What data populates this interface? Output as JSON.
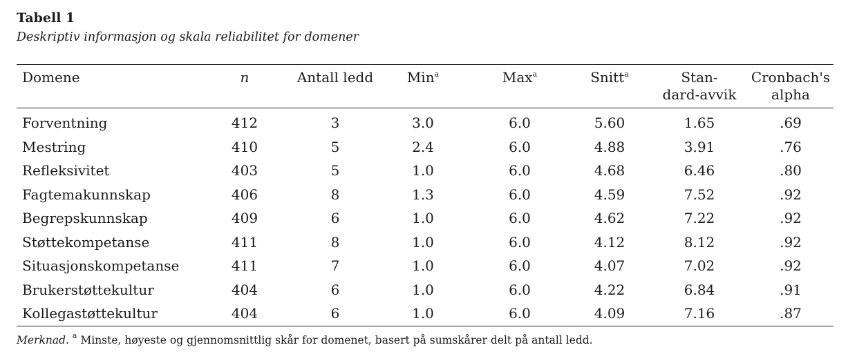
{
  "table": {
    "label": "Tabell 1",
    "caption": "Deskriptiv informasjon og skala reliabilitet for domener",
    "headers": [
      {
        "text": "Domene",
        "sup": ""
      },
      {
        "text": "n",
        "sup": ""
      },
      {
        "text": "Antall ledd",
        "sup": ""
      },
      {
        "text": "Min",
        "sup": "a"
      },
      {
        "text": "Max",
        "sup": "a"
      },
      {
        "text": "Snitt",
        "sup": "a"
      },
      {
        "text": "Stan-\ndard-avvik",
        "line1": "Stan-",
        "line2": "dard-avvik",
        "sup": ""
      },
      {
        "text": "Cronbach's\nalpha",
        "line1": "Cronbach's",
        "line2": "alpha",
        "sup": ""
      }
    ],
    "rows": [
      [
        "Forventning",
        "412",
        "3",
        "3.0",
        "6.0",
        "5.60",
        "1.65",
        ".69"
      ],
      [
        "Mestring",
        "410",
        "5",
        "2.4",
        "6.0",
        "4.88",
        "3.91",
        ".76"
      ],
      [
        "Refleksivitet",
        "403",
        "5",
        "1.0",
        "6.0",
        "4.68",
        "6.46",
        ".80"
      ],
      [
        "Fagtemakunnskap",
        "406",
        "8",
        "1.3",
        "6.0",
        "4.59",
        "7.52",
        ".92"
      ],
      [
        "Begrepskunnskap",
        "409",
        "6",
        "1.0",
        "6.0",
        "4.62",
        "7.22",
        ".92"
      ],
      [
        "Støttekompetanse",
        "411",
        "8",
        "1.0",
        "6.0",
        "4.12",
        "8.12",
        ".92"
      ],
      [
        "Situasjonskompetanse",
        "411",
        "7",
        "1.0",
        "6.0",
        "4.07",
        "7.02",
        ".92"
      ],
      [
        "Brukerstøttekultur",
        "404",
        "6",
        "1.0",
        "6.0",
        "4.22",
        "6.84",
        ".91"
      ],
      [
        "Kollegastøttekultur",
        "404",
        "6",
        "1.0",
        "6.0",
        "4.09",
        "7.16",
        ".87"
      ]
    ],
    "note": {
      "label": "Merknad",
      "marker": "a",
      "text": "Minste, høyeste og gjennomsnittlig skår for domenet, basert på sumskårer delt på antall ledd."
    }
  }
}
